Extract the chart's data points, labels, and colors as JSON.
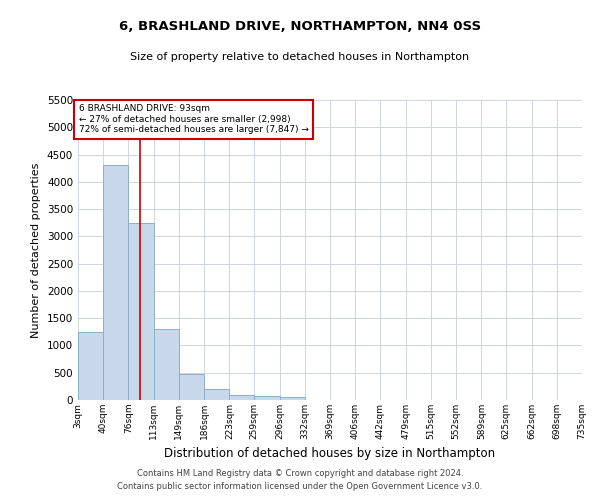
{
  "title": "6, BRASHLAND DRIVE, NORTHAMPTON, NN4 0SS",
  "subtitle": "Size of property relative to detached houses in Northampton",
  "xlabel": "Distribution of detached houses by size in Northampton",
  "ylabel": "Number of detached properties",
  "bar_color": "#c8d8ea",
  "bar_edge_color": "#8ab0cc",
  "background_color": "#ffffff",
  "grid_color": "#c8d0dc",
  "annotation_line_color": "#cc0000",
  "annotation_box_color": "#cc0000",
  "footer_line1": "Contains HM Land Registry data © Crown copyright and database right 2024.",
  "footer_line2": "Contains public sector information licensed under the Open Government Licence v3.0.",
  "annotation_text_line1": "6 BRASHLAND DRIVE: 93sqm",
  "annotation_text_line2": "← 27% of detached houses are smaller (2,998)",
  "annotation_text_line3": "72% of semi-detached houses are larger (7,847) →",
  "property_size": 93,
  "bin_edges": [
    3,
    40,
    76,
    113,
    149,
    186,
    223,
    259,
    296,
    332,
    369,
    406,
    442,
    479,
    515,
    552,
    589,
    625,
    662,
    698,
    735
  ],
  "bin_labels": [
    "3sqm",
    "40sqm",
    "76sqm",
    "113sqm",
    "149sqm",
    "186sqm",
    "223sqm",
    "259sqm",
    "296sqm",
    "332sqm",
    "369sqm",
    "406sqm",
    "442sqm",
    "479sqm",
    "515sqm",
    "552sqm",
    "589sqm",
    "625sqm",
    "662sqm",
    "698sqm",
    "735sqm"
  ],
  "bar_heights": [
    1250,
    4300,
    3250,
    1300,
    480,
    200,
    100,
    80,
    60,
    0,
    0,
    0,
    0,
    0,
    0,
    0,
    0,
    0,
    0,
    0
  ],
  "ylim": [
    0,
    5500
  ],
  "yticks": [
    0,
    500,
    1000,
    1500,
    2000,
    2500,
    3000,
    3500,
    4000,
    4500,
    5000,
    5500
  ]
}
